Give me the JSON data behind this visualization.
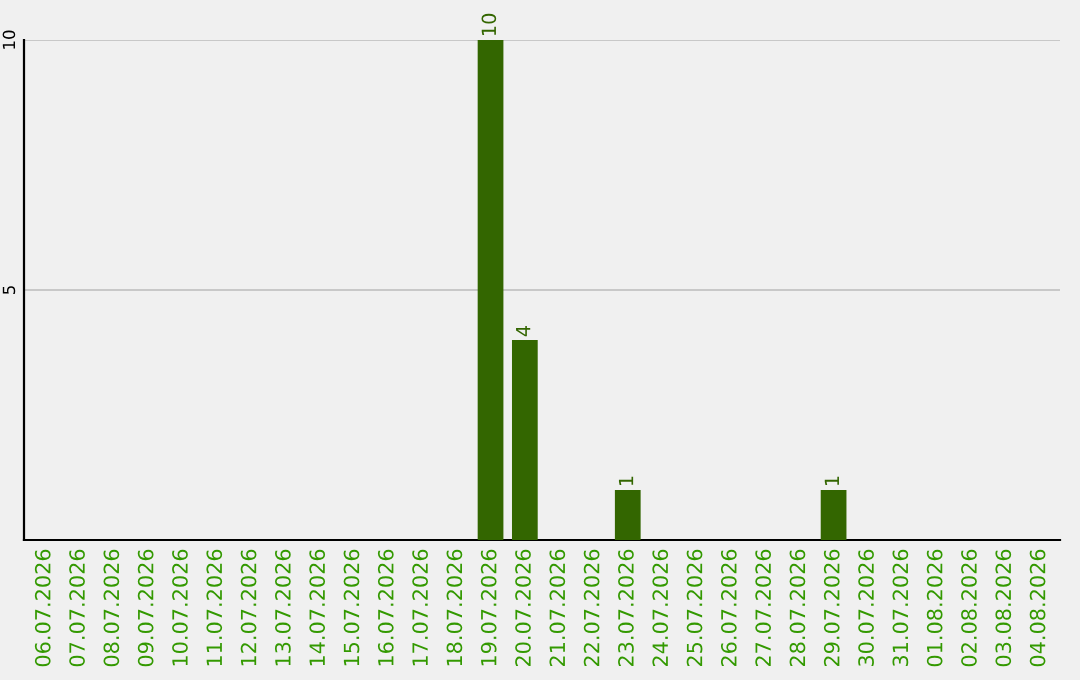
{
  "chart_data": {
    "type": "bar",
    "categories": [
      "06.07.2026",
      "07.07.2026",
      "08.07.2026",
      "09.07.2026",
      "10.07.2026",
      "11.07.2026",
      "12.07.2026",
      "13.07.2026",
      "14.07.2026",
      "15.07.2026",
      "16.07.2026",
      "17.07.2026",
      "18.07.2026",
      "19.07.2026",
      "20.07.2026",
      "21.07.2026",
      "22.07.2026",
      "23.07.2026",
      "24.07.2026",
      "25.07.2026",
      "26.07.2026",
      "27.07.2026",
      "28.07.2026",
      "29.07.2026",
      "30.07.2026",
      "31.07.2026",
      "01.08.2026",
      "02.08.2026",
      "03.08.2026",
      "04.08.2026"
    ],
    "values": [
      0,
      0,
      0,
      0,
      0,
      0,
      0,
      0,
      0,
      0,
      0,
      0,
      0,
      10,
      4,
      0,
      0,
      1,
      0,
      0,
      0,
      0,
      0,
      1,
      0,
      0,
      0,
      0,
      0,
      0
    ],
    "value_labels": [
      null,
      null,
      null,
      null,
      null,
      null,
      null,
      null,
      null,
      null,
      null,
      null,
      null,
      "10",
      "4",
      null,
      null,
      "1",
      null,
      null,
      null,
      null,
      null,
      "1",
      null,
      null,
      null,
      null,
      null,
      null
    ],
    "color": "#336600",
    "ylim": [
      0,
      10
    ],
    "yticks": [
      5,
      10
    ],
    "grid": "y"
  }
}
